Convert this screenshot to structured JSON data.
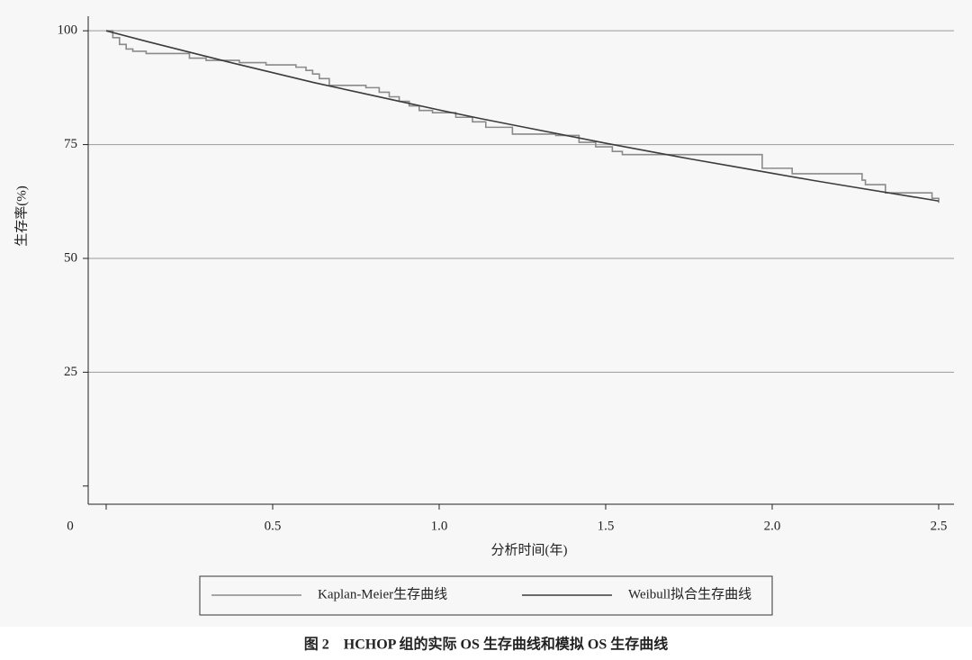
{
  "chart_data": {
    "type": "line",
    "caption": "图 2　HCHOP 组的实际 OS 生存曲线和模拟 OS 生存曲线",
    "xlabel": "分析时间(年)",
    "ylabel": "生存率(%)",
    "xlim": [
      -0.054,
      2.546
    ],
    "ylim": [
      -4,
      103.2
    ],
    "xticks": [
      0,
      0.5,
      {
        "value": 1,
        "label": "1.0"
      },
      1.5,
      {
        "value": 2,
        "label": "2.0"
      },
      2.5
    ],
    "yticks": [
      0,
      25,
      50,
      75,
      100
    ],
    "grid": true,
    "legend": "bottom",
    "series": [
      {
        "name": "Kaplan-Meier生存曲线",
        "color": "#8a8a8a",
        "drawstyle": "steps-post",
        "x": [
          0,
          0.02,
          0.04,
          0.06,
          0.08,
          0.12,
          0.25,
          0.3,
          0.4,
          0.48,
          0.57,
          0.6,
          0.62,
          0.64,
          0.67,
          0.78,
          0.82,
          0.85,
          0.88,
          0.91,
          0.94,
          0.98,
          1.05,
          1.1,
          1.14,
          1.22,
          1.35,
          1.42,
          1.47,
          1.52,
          1.55,
          1.97,
          2.06,
          2.27,
          2.28,
          2.34,
          2.48,
          2.5
        ],
        "values": [
          100,
          98.5,
          97,
          96,
          95.5,
          95,
          94,
          93.5,
          93,
          92.5,
          92,
          91.3,
          90.5,
          89.5,
          88,
          87.5,
          86.5,
          85.5,
          84.5,
          83.5,
          82.5,
          82,
          81,
          80,
          78.8,
          77.3,
          77,
          75.5,
          74.5,
          73.5,
          72.8,
          69.8,
          68.6,
          67.2,
          66.2,
          64.4,
          63.2,
          62.2
        ]
      },
      {
        "name": "Weibull拟合生存曲线",
        "color": "#3c3c3c",
        "drawstyle": "default",
        "x": [
          0,
          0.125,
          0.25,
          0.375,
          0.5,
          0.625,
          0.75,
          0.875,
          1,
          1.125,
          1.25,
          1.375,
          1.5,
          1.625,
          1.75,
          1.875,
          2,
          2.125,
          2.25,
          2.375,
          2.5
        ],
        "values": [
          100,
          97.6,
          95.3,
          93.0,
          90.8,
          88.6,
          86.6,
          84.6,
          82.6,
          80.7,
          78.9,
          77.1,
          75.3,
          73.6,
          71.9,
          70.3,
          68.7,
          67.1,
          65.6,
          64.1,
          62.6
        ]
      }
    ]
  }
}
